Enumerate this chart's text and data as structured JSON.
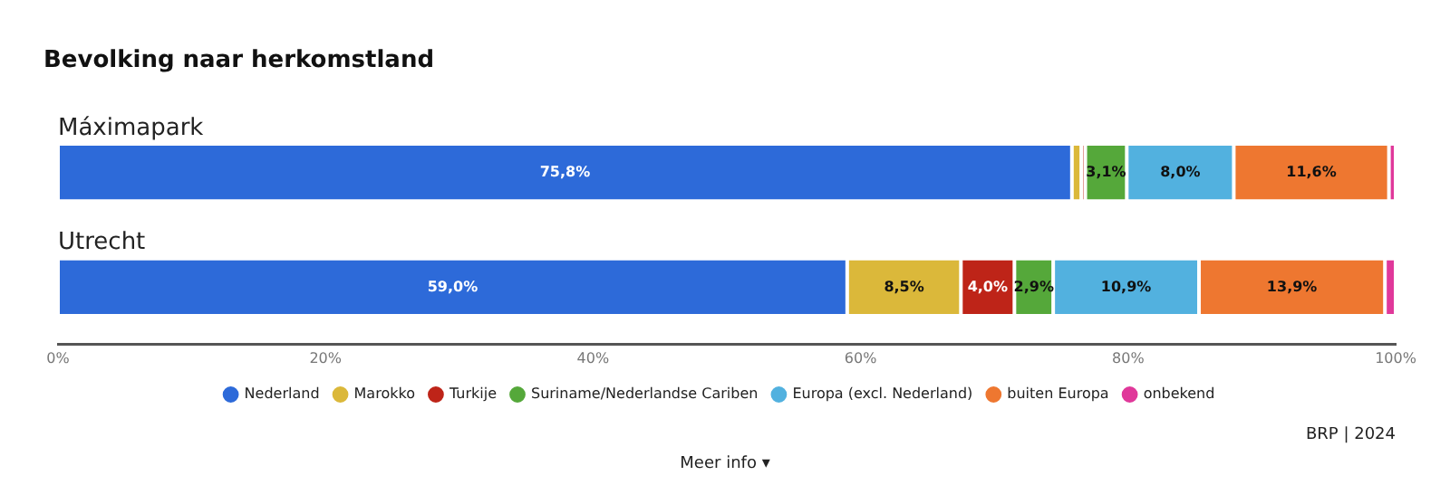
{
  "chart_data": {
    "type": "bar",
    "orientation": "horizontal",
    "stacked": true,
    "title": "Bevolking naar herkomstland",
    "categories": [
      "Máximapark",
      "Utrecht"
    ],
    "series": [
      {
        "name": "Nederland",
        "color": "#2d6ad9",
        "values": [
          75.8,
          59.0
        ],
        "value_labels": [
          "75,8%",
          "59,0%"
        ]
      },
      {
        "name": "Marokko",
        "color": "#dbb83a",
        "values": [
          0.7,
          8.5
        ],
        "value_labels": [
          null,
          "8,5%"
        ]
      },
      {
        "name": "Turkije",
        "color": "#be2418",
        "values": [
          0.3,
          4.0
        ],
        "value_labels": [
          null,
          "4,0%"
        ]
      },
      {
        "name": "Suriname/Nederlandse Cariben",
        "color": "#55a83a",
        "values": [
          3.1,
          2.9
        ],
        "value_labels": [
          "3,1%",
          "2,9%"
        ]
      },
      {
        "name": "Europa (excl. Nederland)",
        "color": "#52b1df",
        "values": [
          8.0,
          10.9
        ],
        "value_labels": [
          "8,0%",
          "10,9%"
        ]
      },
      {
        "name": "buiten Europa",
        "color": "#ee7730",
        "values": [
          11.6,
          13.9
        ],
        "value_labels": [
          "11,6%",
          "13,9%"
        ]
      },
      {
        "name": "onbekend",
        "color": "#e0389a",
        "values": [
          0.5,
          0.8
        ],
        "value_labels": [
          null,
          null
        ]
      }
    ],
    "xlim": [
      0,
      100
    ],
    "xticks": [
      {
        "value": 0,
        "label": "0%"
      },
      {
        "value": 20,
        "label": "20%"
      },
      {
        "value": 40,
        "label": "40%"
      },
      {
        "value": 60,
        "label": "60%"
      },
      {
        "value": 80,
        "label": "80%"
      },
      {
        "value": 100,
        "label": "100%"
      }
    ],
    "grid": false,
    "legend": "bottom",
    "marker": "circle",
    "annotations": [
      "BRP | 2024",
      "Meer info ▾"
    ]
  }
}
